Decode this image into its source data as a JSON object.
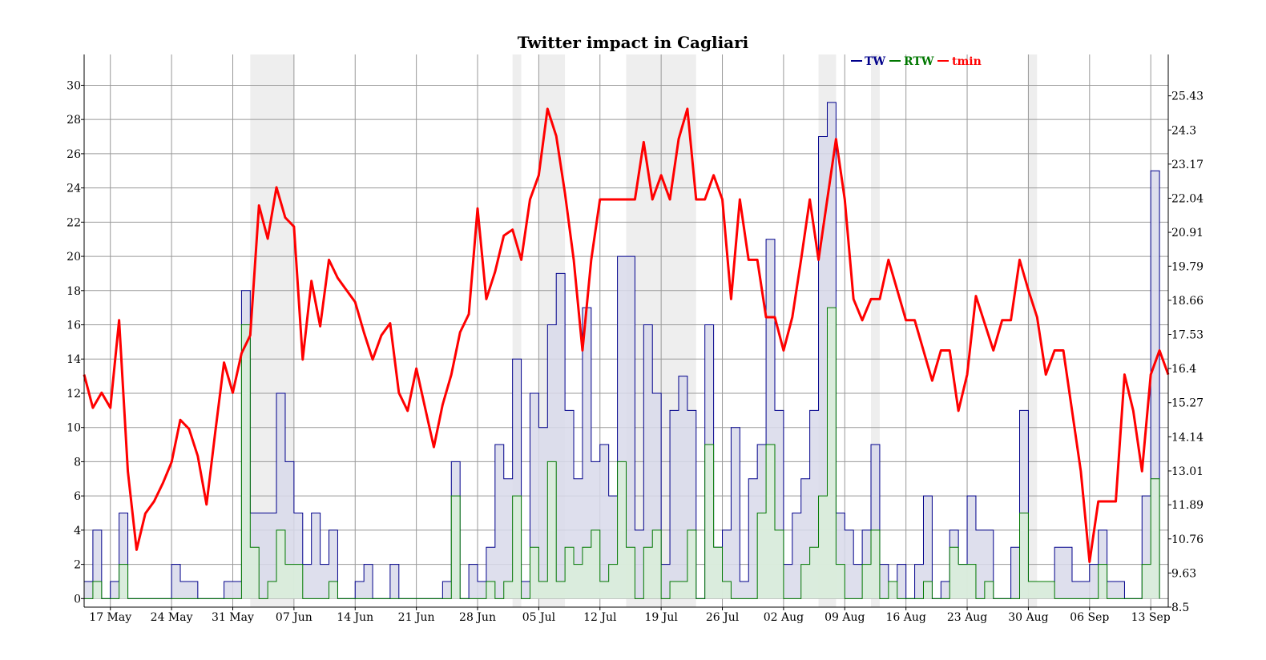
{
  "chart_data": {
    "type": "line",
    "title": "Twitter impact in Cagliari",
    "xlabel": "",
    "ylabel": "",
    "x_start": "2013-05-14",
    "x_end": "2013-09-15",
    "x_ticks": [
      {
        "date": "2013-05-17",
        "label": "17 May"
      },
      {
        "date": "2013-05-24",
        "label": "24 May"
      },
      {
        "date": "2013-05-31",
        "label": "31 May"
      },
      {
        "date": "2013-06-07",
        "label": "07 Jun"
      },
      {
        "date": "2013-06-14",
        "label": "14 Jun"
      },
      {
        "date": "2013-06-21",
        "label": "21 Jun"
      },
      {
        "date": "2013-06-28",
        "label": "28 Jun"
      },
      {
        "date": "2013-07-05",
        "label": "05 Jul"
      },
      {
        "date": "2013-07-12",
        "label": "12 Jul"
      },
      {
        "date": "2013-07-19",
        "label": "19 Jul"
      },
      {
        "date": "2013-07-26",
        "label": "26 Jul"
      },
      {
        "date": "2013-08-02",
        "label": "02 Aug"
      },
      {
        "date": "2013-08-09",
        "label": "09 Aug"
      },
      {
        "date": "2013-08-16",
        "label": "16 Aug"
      },
      {
        "date": "2013-08-23",
        "label": "23 Aug"
      },
      {
        "date": "2013-08-30",
        "label": "30 Aug"
      },
      {
        "date": "2013-09-06",
        "label": "06 Sep"
      },
      {
        "date": "2013-09-13",
        "label": "13 Sep"
      }
    ],
    "ylim_left": [
      -0.5,
      31.8
    ],
    "yticks_left": [
      "0",
      "2",
      "4",
      "6",
      "8",
      "10",
      "12",
      "14",
      "16",
      "18",
      "20",
      "22",
      "24",
      "26",
      "28",
      "30"
    ],
    "ylim_right": [
      8.5,
      26.8
    ],
    "yticks_right": [
      "8.5",
      "9.63",
      "10.76",
      "11.89",
      "13.01",
      "14.14",
      "15.27",
      "16.4",
      "17.53",
      "18.66",
      "19.79",
      "20.91",
      "22.04",
      "23.17",
      "24.3",
      "25.43"
    ],
    "grid": true,
    "legend_position": "top-right",
    "shaded_periods": [
      {
        "start": "2013-06-02",
        "end": "2013-06-07"
      },
      {
        "start": "2013-07-02",
        "end": "2013-07-03"
      },
      {
        "start": "2013-07-05",
        "end": "2013-07-08"
      },
      {
        "start": "2013-07-15",
        "end": "2013-07-23"
      },
      {
        "start": "2013-08-06",
        "end": "2013-08-08"
      },
      {
        "start": "2013-08-12",
        "end": "2013-08-13"
      },
      {
        "start": "2013-08-30",
        "end": "2013-08-31"
      }
    ],
    "series": [
      {
        "name": "TW",
        "color": "#00008b",
        "fill": "#d8d9ea",
        "axis": "left",
        "style": "step",
        "start_date": "2013-05-14",
        "values": [
          1,
          4,
          0,
          1,
          5,
          0,
          0,
          0,
          0,
          0,
          2,
          1,
          1,
          0,
          0,
          0,
          1,
          1,
          18,
          5,
          5,
          5,
          12,
          8,
          5,
          2,
          5,
          2,
          4,
          0,
          0,
          1,
          2,
          0,
          0,
          2,
          0,
          0,
          0,
          0,
          0,
          1,
          8,
          0,
          2,
          1,
          3,
          9,
          7,
          14,
          1,
          12,
          10,
          16,
          19,
          11,
          7,
          17,
          8,
          9,
          6,
          20,
          20,
          4,
          16,
          12,
          2,
          11,
          13,
          11,
          0,
          16,
          3,
          4,
          10,
          1,
          7,
          9,
          21,
          11,
          2,
          5,
          7,
          11,
          27,
          29,
          5,
          4,
          2,
          4,
          9,
          2,
          1,
          2,
          0,
          2,
          6,
          0,
          1,
          4,
          2,
          6,
          4,
          4,
          0,
          0,
          3,
          11,
          1,
          1,
          1,
          3,
          3,
          1,
          1,
          2,
          4,
          1,
          1,
          0,
          0,
          6,
          25
        ]
      },
      {
        "name": "RTW",
        "color": "#007700",
        "fill": "#d9eed9",
        "axis": "left",
        "style": "step",
        "start_date": "2013-05-14",
        "values": [
          0,
          1,
          0,
          0,
          2,
          0,
          0,
          0,
          0,
          0,
          0,
          0,
          0,
          0,
          0,
          0,
          0,
          0,
          16,
          3,
          0,
          1,
          4,
          2,
          2,
          0,
          0,
          0,
          1,
          0,
          0,
          0,
          0,
          0,
          0,
          0,
          0,
          0,
          0,
          0,
          0,
          0,
          6,
          0,
          0,
          0,
          1,
          0,
          1,
          6,
          0,
          3,
          1,
          8,
          1,
          3,
          2,
          3,
          4,
          1,
          2,
          8,
          3,
          0,
          3,
          4,
          0,
          1,
          1,
          4,
          0,
          9,
          3,
          1,
          0,
          0,
          0,
          5,
          9,
          4,
          0,
          0,
          2,
          3,
          6,
          17,
          2,
          0,
          0,
          2,
          4,
          0,
          1,
          0,
          0,
          0,
          1,
          0,
          0,
          3,
          2,
          2,
          0,
          1,
          0,
          0,
          0,
          5,
          1,
          1,
          1,
          0,
          0,
          0,
          0,
          0,
          2,
          0,
          0,
          0,
          0,
          2,
          7
        ]
      },
      {
        "name": "tmin",
        "color": "#ff0000",
        "axis": "right",
        "style": "line",
        "start_date": "2013-05-14",
        "values": [
          16.2,
          15.1,
          15.6,
          15.1,
          18.0,
          13.0,
          10.4,
          11.6,
          12.0,
          12.6,
          13.3,
          14.7,
          14.4,
          13.5,
          11.9,
          14.3,
          16.6,
          15.6,
          16.9,
          17.5,
          21.8,
          20.7,
          22.4,
          21.4,
          21.1,
          16.7,
          19.3,
          17.8,
          20.0,
          19.4,
          19.0,
          18.6,
          17.6,
          16.7,
          17.5,
          17.9,
          15.6,
          15.0,
          16.4,
          15.1,
          13.8,
          15.2,
          16.2,
          17.6,
          18.2,
          21.7,
          18.7,
          19.6,
          20.8,
          21.0,
          20.0,
          22.0,
          22.8,
          25.0,
          24.1,
          22.2,
          20.0,
          17.0,
          20.0,
          22.0,
          22.0,
          22.0,
          22.0,
          22.0,
          23.9,
          22.0,
          22.8,
          22.0,
          24.0,
          25.0,
          22.0,
          22.0,
          22.8,
          22.0,
          18.7,
          22.0,
          20.0,
          20.0,
          18.1,
          18.1,
          17.0,
          18.1,
          20.0,
          22.0,
          20.0,
          22.0,
          24.0,
          22.0,
          18.7,
          18.0,
          18.7,
          18.7,
          20.0,
          19.0,
          18.0,
          18.0,
          17.0,
          16.0,
          17.0,
          17.0,
          15.0,
          16.2,
          18.8,
          17.9,
          17.0,
          18.0,
          18.0,
          20.0,
          19.0,
          18.1,
          16.2,
          17.0,
          17.0,
          15.0,
          13.0,
          10.0,
          12.0,
          12.0,
          12.0,
          16.2,
          15.0,
          13.0,
          16.2,
          17.0,
          16.2
        ]
      }
    ]
  }
}
